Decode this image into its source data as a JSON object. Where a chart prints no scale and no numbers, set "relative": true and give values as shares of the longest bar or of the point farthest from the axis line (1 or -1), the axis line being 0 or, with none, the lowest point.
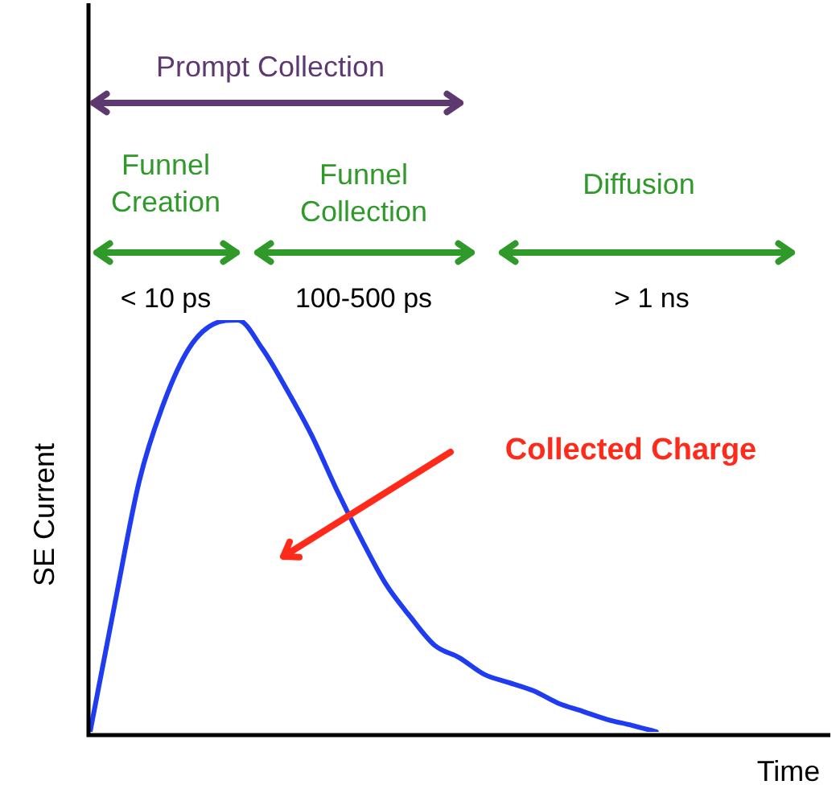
{
  "chart_data": {
    "type": "line",
    "xlabel": "Time",
    "ylabel": "SE Current",
    "relative": true,
    "legend": false,
    "marker": "none",
    "line_style": "solid",
    "categories": [
      null,
      null,
      null,
      null,
      null,
      null,
      null,
      null,
      null,
      null,
      null,
      null,
      null,
      null,
      null,
      null,
      null,
      null,
      null,
      null,
      null,
      null,
      null,
      null,
      null,
      null,
      null,
      null,
      null,
      null,
      null
    ],
    "series": [
      {
        "color": "#1f3cf0",
        "values": [
          0,
          0.31,
          0.61,
          0.8,
          0.93,
          0.99,
          1,
          0.93,
          0.83,
          0.72,
          0.59,
          0.47,
          0.36,
          0.28,
          0.21,
          0.18,
          0.14,
          0.12,
          0.1,
          0.07,
          0.05,
          0.03,
          0.016,
          0,
          null,
          null,
          null,
          null,
          null,
          null,
          null
        ]
      }
    ],
    "annotations": [
      "Prompt Collection",
      "Funnel Creation",
      "Funnel Collection",
      "Diffusion",
      "< 10 ps",
      "100-500 ps",
      "> 1 ns",
      "Collected Charge"
    ]
  }
}
